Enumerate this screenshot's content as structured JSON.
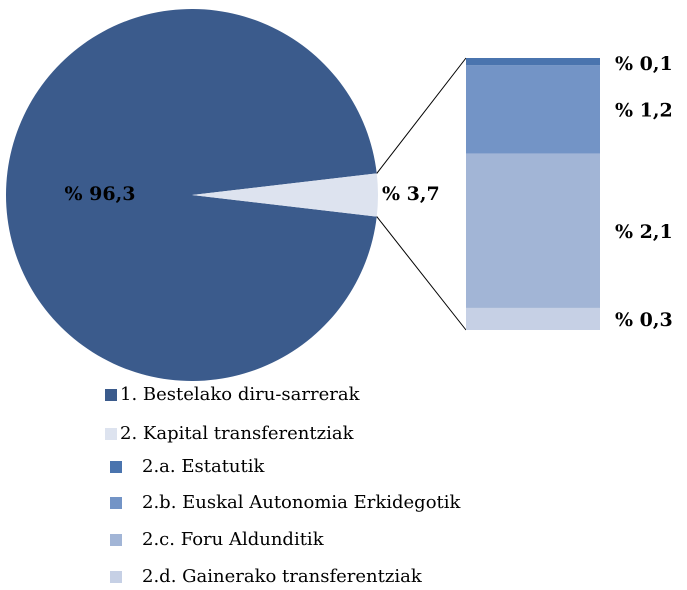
{
  "chart_data": {
    "type": "pie",
    "categories": [
      "1. Bestelako diru-sarrerak",
      "2. Kapital transferentziak"
    ],
    "values": [
      96.3,
      3.7
    ],
    "value_labels": [
      "% 96,3",
      "% 3,7"
    ],
    "colors": [
      "#3b5b8c",
      "#dde3ef"
    ],
    "breakdown": {
      "categories": [
        "2.a. Estatutik",
        "2.b. Euskal Autonomia Erkidegotik",
        "2.c. Foru Aldunditik",
        "2.d. Gainerako transferentziak"
      ],
      "values": [
        0.1,
        1.2,
        2.1,
        0.3
      ],
      "value_labels": [
        "% 0,1",
        "% 1,2",
        "% 2,1",
        "% 0,3"
      ],
      "colors": [
        "#4a74ae",
        "#7394c6",
        "#a2b5d6",
        "#c6d0e5"
      ]
    }
  }
}
